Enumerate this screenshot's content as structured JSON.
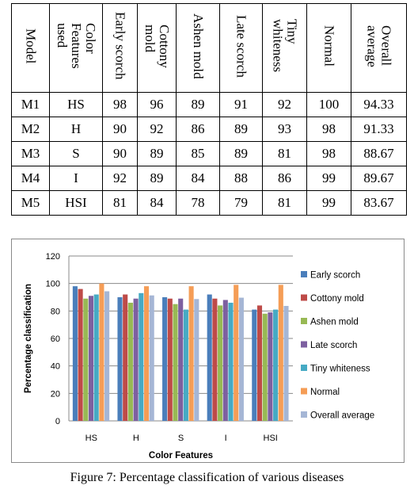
{
  "table": {
    "headers": [
      "Model",
      "Color\nFeatures\nused",
      "Early scorch",
      "Cottony\nmold",
      "Ashen mold",
      "Late scorch",
      "Tiny\nwhiteness",
      "Normal",
      "Overall\naverage"
    ],
    "rows": [
      [
        "M1",
        "HS",
        "98",
        "96",
        "89",
        "91",
        "92",
        "100",
        "94.33"
      ],
      [
        "M2",
        "H",
        "90",
        "92",
        "86",
        "89",
        "93",
        "98",
        "91.33"
      ],
      [
        "M3",
        "S",
        "90",
        "89",
        "85",
        "89",
        "81",
        "98",
        "88.67"
      ],
      [
        "M4",
        "I",
        "92",
        "89",
        "84",
        "88",
        "86",
        "99",
        "89.67"
      ],
      [
        "M5",
        "HSI",
        "81",
        "84",
        "78",
        "79",
        "81",
        "99",
        "83.67"
      ]
    ]
  },
  "chart_data": {
    "type": "bar",
    "categories": [
      "HS",
      "H",
      "S",
      "I",
      "HSI"
    ],
    "xlabel": "Color Features",
    "ylabel": "Percentage classification",
    "ylim": [
      0,
      120
    ],
    "yticks": [
      0,
      20,
      40,
      60,
      80,
      100,
      120
    ],
    "grid": "horizontal",
    "legend_position": "right",
    "series": [
      {
        "name": "Early scorch",
        "color": "#4a7ebb",
        "values": [
          98,
          90,
          90,
          92,
          81
        ]
      },
      {
        "name": "Cottony mold",
        "color": "#be4b48",
        "values": [
          96,
          92,
          89,
          89,
          84
        ]
      },
      {
        "name": "Ashen mold",
        "color": "#98b954",
        "values": [
          89,
          86,
          85,
          84,
          78
        ]
      },
      {
        "name": "Late scorch",
        "color": "#7d60a0",
        "values": [
          91,
          89,
          89,
          88,
          79
        ]
      },
      {
        "name": "Tiny whiteness",
        "color": "#46aac4",
        "values": [
          92,
          93,
          81,
          86,
          81
        ]
      },
      {
        "name": "Normal",
        "color": "#f59d56",
        "values": [
          100,
          98,
          98,
          99,
          99
        ]
      },
      {
        "name": "Overall average",
        "color": "#a5b6d5",
        "values": [
          94.33,
          91.33,
          88.67,
          89.67,
          83.67
        ]
      }
    ]
  },
  "caption": "Figure 7: Percentage classification of various diseases"
}
